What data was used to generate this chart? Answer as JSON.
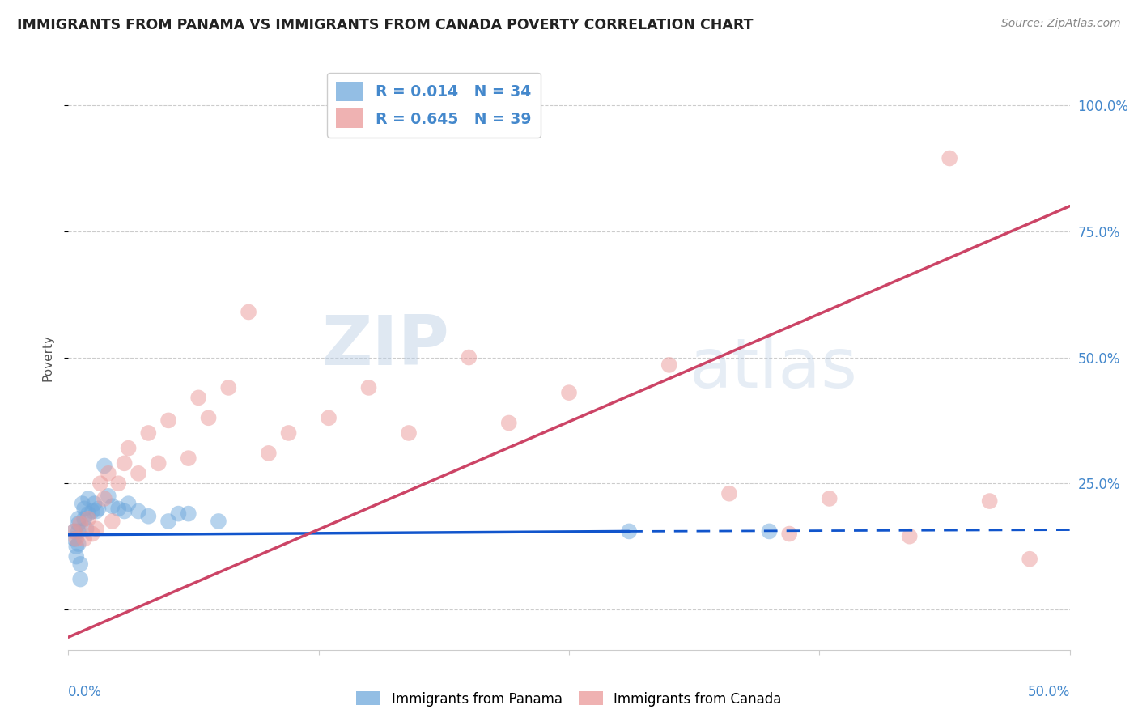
{
  "title": "IMMIGRANTS FROM PANAMA VS IMMIGRANTS FROM CANADA POVERTY CORRELATION CHART",
  "source": "Source: ZipAtlas.com",
  "ylabel": "Poverty",
  "yticks": [
    0.0,
    0.25,
    0.5,
    0.75,
    1.0
  ],
  "ytick_labels": [
    "",
    "25.0%",
    "50.0%",
    "75.0%",
    "100.0%"
  ],
  "xlim": [
    0.0,
    0.5
  ],
  "ylim": [
    -0.08,
    1.08
  ],
  "panama_color": "#6fa8dc",
  "canada_color": "#ea9999",
  "panama_line_color": "#1155cc",
  "canada_line_color": "#cc4466",
  "panama_R": 0.014,
  "panama_N": 34,
  "canada_R": 0.645,
  "canada_N": 39,
  "watermark_zip": "ZIP",
  "watermark_atlas": "atlas",
  "panama_line_x0": 0.0,
  "panama_line_y0": 0.148,
  "panama_line_x1": 0.28,
  "panama_line_y1": 0.155,
  "panama_line_dash_x0": 0.28,
  "panama_line_dash_y0": 0.155,
  "panama_line_dash_x1": 0.5,
  "panama_line_dash_y1": 0.158,
  "canada_line_x0": 0.0,
  "canada_line_y0": -0.055,
  "canada_line_x1": 0.5,
  "canada_line_y1": 0.8,
  "panama_x": [
    0.003,
    0.003,
    0.004,
    0.004,
    0.005,
    0.005,
    0.005,
    0.005,
    0.006,
    0.006,
    0.007,
    0.008,
    0.008,
    0.009,
    0.01,
    0.01,
    0.012,
    0.013,
    0.014,
    0.015,
    0.018,
    0.02,
    0.022,
    0.025,
    0.028,
    0.03,
    0.035,
    0.04,
    0.05,
    0.055,
    0.06,
    0.075,
    0.28,
    0.35
  ],
  "panama_y": [
    0.155,
    0.14,
    0.125,
    0.105,
    0.18,
    0.17,
    0.155,
    0.13,
    0.09,
    0.06,
    0.21,
    0.2,
    0.18,
    0.16,
    0.22,
    0.19,
    0.195,
    0.21,
    0.195,
    0.2,
    0.285,
    0.225,
    0.205,
    0.2,
    0.195,
    0.21,
    0.195,
    0.185,
    0.175,
    0.19,
    0.19,
    0.175,
    0.155,
    0.155
  ],
  "canada_x": [
    0.003,
    0.004,
    0.006,
    0.008,
    0.01,
    0.012,
    0.014,
    0.016,
    0.018,
    0.02,
    0.022,
    0.025,
    0.028,
    0.03,
    0.035,
    0.04,
    0.045,
    0.05,
    0.06,
    0.065,
    0.07,
    0.08,
    0.09,
    0.1,
    0.11,
    0.13,
    0.15,
    0.17,
    0.2,
    0.22,
    0.25,
    0.3,
    0.33,
    0.36,
    0.38,
    0.42,
    0.44,
    0.46,
    0.48
  ],
  "canada_y": [
    0.155,
    0.14,
    0.17,
    0.14,
    0.18,
    0.15,
    0.16,
    0.25,
    0.22,
    0.27,
    0.175,
    0.25,
    0.29,
    0.32,
    0.27,
    0.35,
    0.29,
    0.375,
    0.3,
    0.42,
    0.38,
    0.44,
    0.59,
    0.31,
    0.35,
    0.38,
    0.44,
    0.35,
    0.5,
    0.37,
    0.43,
    0.485,
    0.23,
    0.15,
    0.22,
    0.145,
    0.895,
    0.215,
    0.1
  ]
}
